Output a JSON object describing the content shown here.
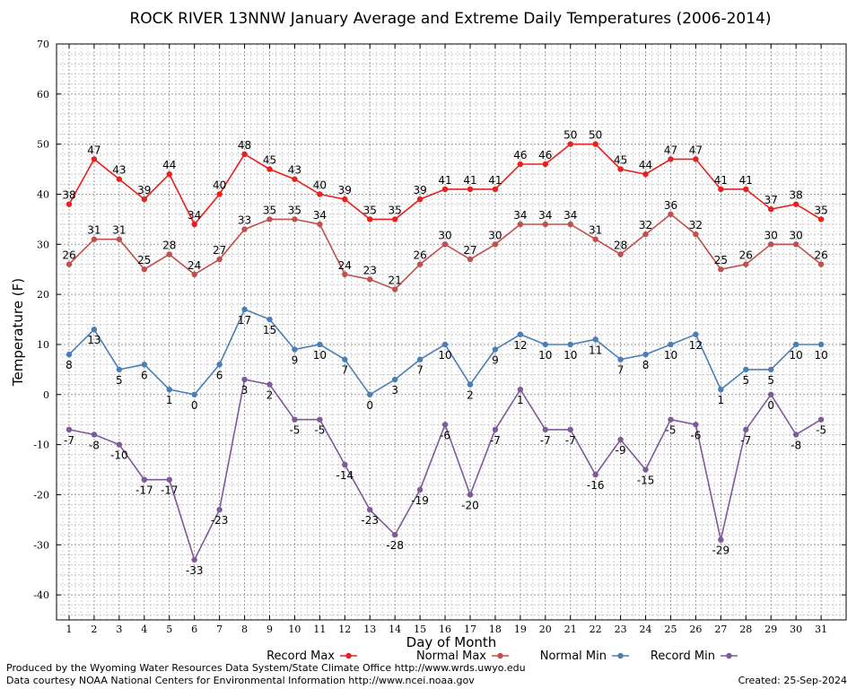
{
  "chart_data": {
    "type": "line",
    "title": "ROCK RIVER 13NNW January Average and Extreme Daily Temperatures (2006-2014)",
    "xlabel": "Day of Month",
    "ylabel": "Temperature (F)",
    "ylim": [
      -45,
      70
    ],
    "yticks": [
      70,
      60,
      50,
      40,
      30,
      20,
      10,
      0,
      -10,
      -20,
      -30,
      -40
    ],
    "x": [
      1,
      2,
      3,
      4,
      5,
      6,
      7,
      8,
      9,
      10,
      11,
      12,
      13,
      14,
      15,
      16,
      17,
      18,
      19,
      20,
      21,
      22,
      23,
      24,
      25,
      26,
      27,
      28,
      29,
      30,
      31
    ],
    "grid": true,
    "legend_position": "bottom",
    "series": [
      {
        "name": "Record Max",
        "color": "#e8201f",
        "values": [
          38,
          47,
          43,
          39,
          44,
          34,
          40,
          48,
          45,
          43,
          40,
          39,
          35,
          35,
          39,
          41,
          41,
          41,
          46,
          46,
          50,
          50,
          45,
          44,
          47,
          47,
          41,
          41,
          37,
          38,
          35
        ]
      },
      {
        "name": "Normal Max",
        "color": "#c0504d",
        "values": [
          26,
          31,
          31,
          25,
          28,
          24,
          27,
          33,
          35,
          35,
          34,
          24,
          23,
          21,
          26,
          30,
          27,
          30,
          34,
          34,
          34,
          31,
          28,
          32,
          36,
          32,
          25,
          26,
          30,
          30,
          26
        ]
      },
      {
        "name": "Normal Min",
        "color": "#4a7eb5",
        "values": [
          8,
          13,
          5,
          6,
          1,
          0,
          6,
          17,
          15,
          9,
          10,
          7,
          0,
          3,
          7,
          10,
          2,
          9,
          12,
          10,
          10,
          11,
          7,
          8,
          10,
          12,
          1,
          5,
          5,
          10,
          10
        ]
      },
      {
        "name": "Record Min",
        "color": "#7e5a9b",
        "values": [
          -7,
          -8,
          -10,
          -17,
          -17,
          -33,
          -23,
          3,
          2,
          -5,
          -5,
          -14,
          -23,
          -28,
          -19,
          -6,
          -20,
          -7,
          1,
          -7,
          -7,
          -16,
          -9,
          -15,
          -5,
          -6,
          -29,
          -7,
          0,
          -8,
          -5
        ]
      }
    ]
  },
  "footer": {
    "produced_by": "Produced by the Wyoming Water Resources Data System/State Climate Office http://www.wrds.uwyo.edu",
    "courtesy": "Data courtesy NOAA National Centers for Environmental Information http://www.ncei.noaa.gov",
    "created": "Created:  25-Sep-2024"
  }
}
